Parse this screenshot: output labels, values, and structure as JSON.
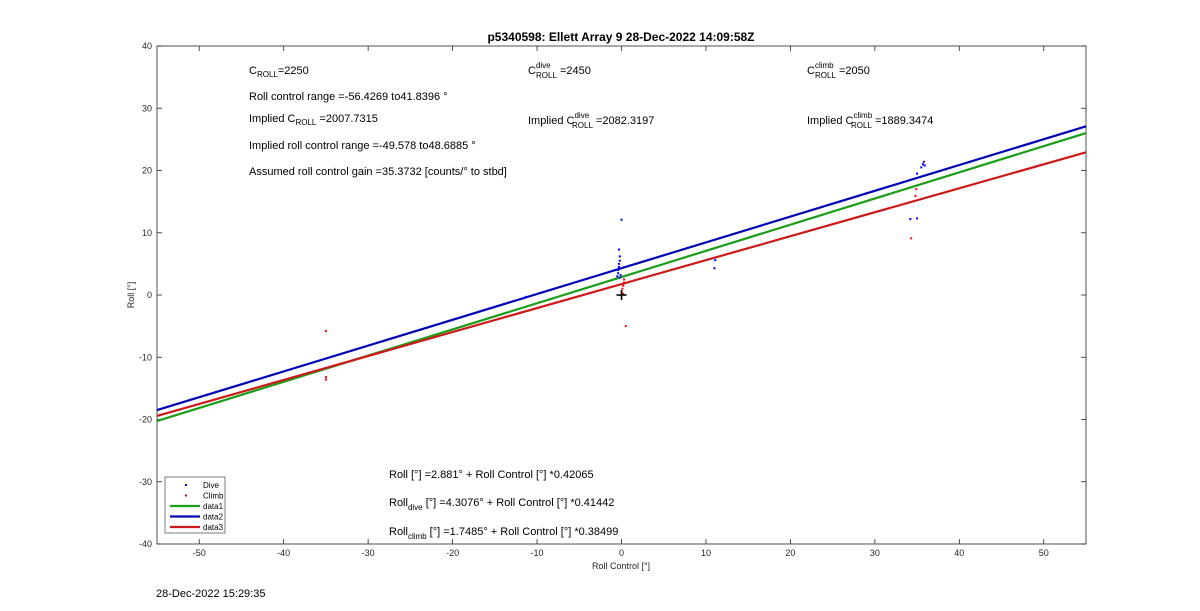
{
  "chart_data": {
    "type": "scatter",
    "title": "p5340598: Ellett Array 9 28-Dec-2022 14:09:58Z",
    "xlabel": "Roll Control [°]",
    "ylabel": "Roll [°]",
    "xlim": [
      -55,
      55
    ],
    "ylim": [
      -40,
      40
    ],
    "xticks": [
      -50,
      -40,
      -30,
      -20,
      -10,
      0,
      10,
      20,
      30,
      40,
      50
    ],
    "yticks": [
      -40,
      -30,
      -20,
      -10,
      0,
      10,
      20,
      30,
      40
    ],
    "grid": false,
    "legend_position": "bottom-left",
    "series": [
      {
        "name": "Dive",
        "kind": "points",
        "color": "#0000ff",
        "points": [
          [
            -11.5,
            -0.5
          ],
          [
            -11.3,
            -0.3
          ],
          [
            -0.5,
            3.0
          ],
          [
            -0.4,
            3.5
          ],
          [
            -0.4,
            4.0
          ],
          [
            -0.3,
            4.5
          ],
          [
            -0.3,
            5.0
          ],
          [
            -0.2,
            5.5
          ],
          [
            -0.2,
            6.2
          ],
          [
            -0.3,
            7.3
          ],
          [
            0.0,
            12.1
          ],
          [
            -0.1,
            3.2
          ],
          [
            -0.2,
            2.8
          ],
          [
            11.0,
            4.3
          ],
          [
            11.1,
            5.6
          ],
          [
            34.2,
            12.2
          ],
          [
            35.0,
            12.3
          ],
          [
            35.0,
            19.5
          ],
          [
            35.5,
            20.5
          ],
          [
            35.7,
            21.0
          ],
          [
            35.8,
            21.4
          ],
          [
            35.9,
            20.8
          ]
        ]
      },
      {
        "name": "Climb",
        "kind": "points",
        "color": "#ff0000",
        "points": [
          [
            -35.0,
            -5.8
          ],
          [
            -35.0,
            -13.2
          ],
          [
            -35.0,
            -13.6
          ],
          [
            0.0,
            0.5
          ],
          [
            0.1,
            1.0
          ],
          [
            0.2,
            1.5
          ],
          [
            0.3,
            2.0
          ],
          [
            0.3,
            2.5
          ],
          [
            0.2,
            0.2
          ],
          [
            0.5,
            -5.0
          ],
          [
            34.3,
            9.1
          ],
          [
            34.8,
            15.9
          ],
          [
            34.9,
            17.0
          ]
        ]
      },
      {
        "name": "data1",
        "kind": "line",
        "color": "#1a9e1a",
        "x": [
          -55,
          55
        ],
        "y": [
          -20.25,
          26.02
        ]
      },
      {
        "name": "data2",
        "kind": "line",
        "color": "#0000b4",
        "x": [
          -55,
          55
        ],
        "y": [
          -18.49,
          27.1
        ]
      },
      {
        "name": "data3",
        "kind": "line",
        "color": "#cc1a1a",
        "x": [
          -55,
          55
        ],
        "y": [
          -19.42,
          22.92
        ]
      }
    ],
    "marker": {
      "name": "origin-cross",
      "x": 0,
      "y": 0,
      "color": "#000000"
    }
  },
  "annotations": {
    "c_roll": {
      "base": "C",
      "sub": "ROLL",
      "value": "=2250"
    },
    "roll_range": "Roll control range =-56.4269 to41.8396 °",
    "implied_c_roll": {
      "prefix": "Implied C",
      "sub": "ROLL",
      "value": " =2007.7315"
    },
    "implied_range": "Implied roll control range =-49.578 to48.6885 °",
    "gain": "Assumed roll control gain =35.3732 [counts/° to stbd]",
    "c_dive": {
      "base": "C",
      "sup": "dive",
      "sub": "ROLL",
      "value": " =2450"
    },
    "implied_c_dive": {
      "prefix": "Implied C",
      "sup": "dive",
      "sub": "ROLL",
      "value": " =2082.3197"
    },
    "c_climb": {
      "base": "C",
      "sup": "climb",
      "sub": "ROLL",
      "value": " =2050"
    },
    "implied_c_climb": {
      "prefix": "Implied C",
      "sup": "climb",
      "sub": "ROLL",
      "value": " =1889.3474"
    },
    "eq_all": "Roll [°] =2.881° + Roll Control [°] *0.42065",
    "eq_dive": {
      "base": "Roll",
      "sub": "dive",
      "rest": " [°] =4.3076° + Roll Control [°] *0.41442"
    },
    "eq_climb": {
      "base": "Roll",
      "sub": "climb",
      "rest": " [°] =1.7485° + Roll Control [°] *0.38499"
    }
  },
  "timestamp": "28-Dec-2022 15:29:35"
}
